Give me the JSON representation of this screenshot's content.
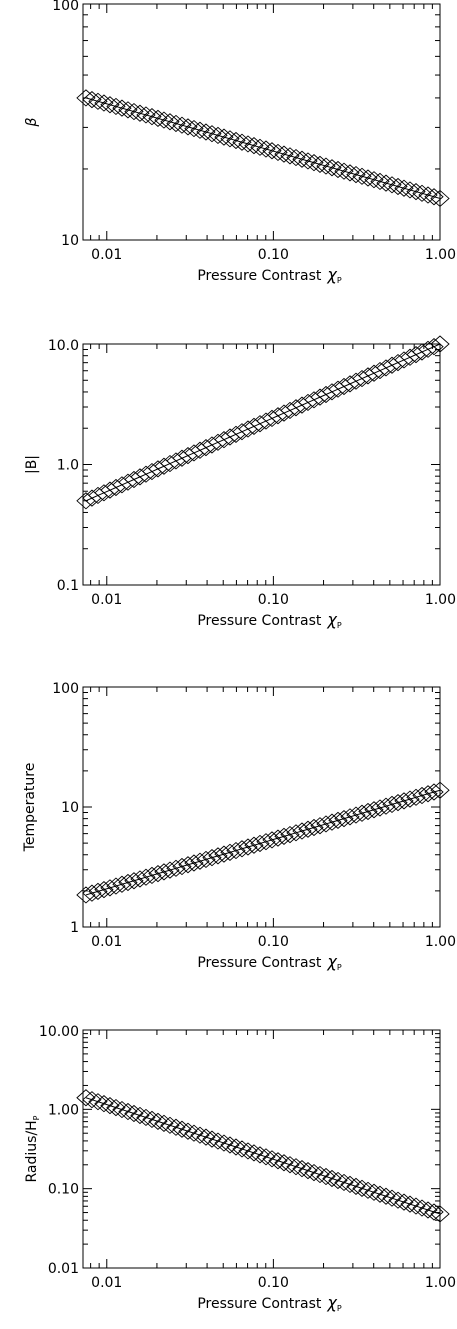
{
  "chart_data": [
    {
      "type": "scatter",
      "xlabel": "Pressure Contrast",
      "xlabel_symbol": "χ",
      "xlabel_subscript": "P",
      "ylabel": "β",
      "ylabel_subscript": "",
      "xscale": "log",
      "yscale": "log",
      "xlim": [
        0.0072,
        1.0
      ],
      "ylim": [
        10,
        100
      ],
      "xticks": [
        0.01,
        0.1,
        1.0
      ],
      "xtick_labels": [
        "0.01",
        "0.10",
        "1.00"
      ],
      "yticks": [
        10,
        100
      ],
      "ytick_labels": [
        "10",
        "100"
      ],
      "grid": false,
      "series": [
        {
          "marker": "diamond",
          "x_start": 0.0075,
          "x_end": 1.0,
          "y_start": 40.0,
          "y_end": 15.0,
          "n_points": 60
        }
      ]
    },
    {
      "type": "scatter",
      "xlabel": "Pressure Contrast",
      "xlabel_symbol": "χ",
      "xlabel_subscript": "P",
      "ylabel": "|B|",
      "ylabel_subscript": "",
      "xscale": "log",
      "yscale": "log",
      "xlim": [
        0.0072,
        1.0
      ],
      "ylim": [
        0.1,
        10.0
      ],
      "xticks": [
        0.01,
        0.1,
        1.0
      ],
      "xtick_labels": [
        "0.01",
        "0.10",
        "1.00"
      ],
      "yticks": [
        0.1,
        1.0,
        10.0
      ],
      "ytick_labels": [
        "0.1",
        "1.0",
        "10.0"
      ],
      "grid": false,
      "series": [
        {
          "marker": "diamond",
          "x_start": 0.0075,
          "x_end": 1.0,
          "y_start": 0.5,
          "y_end": 10.0,
          "n_points": 60
        }
      ]
    },
    {
      "type": "scatter",
      "xlabel": "Pressure Contrast",
      "xlabel_symbol": "χ",
      "xlabel_subscript": "P",
      "ylabel": "Temperature",
      "ylabel_subscript": "",
      "xscale": "log",
      "yscale": "log",
      "xlim": [
        0.0072,
        1.0
      ],
      "ylim": [
        1,
        100
      ],
      "xticks": [
        0.01,
        0.1,
        1.0
      ],
      "xtick_labels": [
        "0.01",
        "0.10",
        "1.00"
      ],
      "yticks": [
        1,
        10,
        100
      ],
      "ytick_labels": [
        "1",
        "10",
        "100"
      ],
      "grid": false,
      "series": [
        {
          "marker": "diamond",
          "x_start": 0.0075,
          "x_end": 1.0,
          "y_start": 1.85,
          "y_end": 13.8,
          "n_points": 60
        }
      ]
    },
    {
      "type": "scatter",
      "xlabel": "Pressure Contrast",
      "xlabel_symbol": "χ",
      "xlabel_subscript": "P",
      "ylabel": "Radius/H",
      "ylabel_subscript": "P",
      "xscale": "log",
      "yscale": "log",
      "xlim": [
        0.0072,
        1.0
      ],
      "ylim": [
        0.01,
        10.0
      ],
      "xticks": [
        0.01,
        0.1,
        1.0
      ],
      "xtick_labels": [
        "0.01",
        "0.10",
        "1.00"
      ],
      "yticks": [
        0.01,
        0.1,
        1.0,
        10.0
      ],
      "ytick_labels": [
        "0.01",
        "0.10",
        "1.00",
        "10.00"
      ],
      "grid": false,
      "series": [
        {
          "marker": "diamond",
          "x_start": 0.0075,
          "x_end": 1.0,
          "y_start": 1.4,
          "y_end": 0.048,
          "n_points": 60
        }
      ]
    }
  ]
}
